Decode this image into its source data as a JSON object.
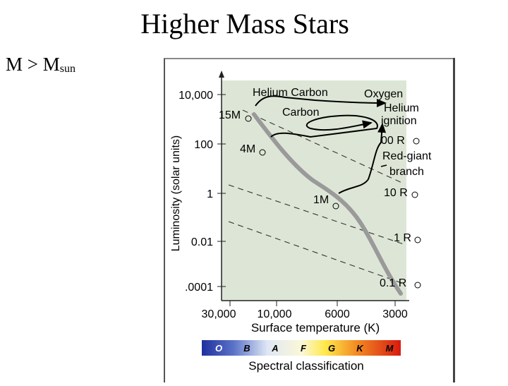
{
  "slide": {
    "title": "Higher Mass Stars",
    "bullet_main": "M > M",
    "bullet_sub": "sun"
  },
  "diagram": {
    "y_axis_label": "Luminosity (solar units)",
    "x_axis_label": "Surface temperature (K)",
    "y_ticks": [
      "10,000",
      "100",
      "1",
      "0.01",
      ".0001"
    ],
    "x_ticks": [
      "30,000",
      "10,000",
      "6000",
      "3000"
    ],
    "mass_labels": [
      "15M",
      "4M",
      "1M"
    ],
    "radius_labels": [
      "00 R",
      "10 R",
      "1 R",
      "0.1 R"
    ],
    "track_labels": {
      "helium_carbon": "Helium Carbon",
      "oxygen": "Oxygen",
      "carbon": "Carbon",
      "helium_ignition_1": "Helium",
      "helium_ignition_2": "ignition",
      "red_giant_1": "Red-giant",
      "red_giant_2": "branch"
    },
    "spectral_title": "Spectral classification",
    "spectral_classes": [
      "O",
      "B",
      "A",
      "F",
      "G",
      "K",
      "M"
    ],
    "colors": {
      "plot_bg": "#dde6d6",
      "main_sequence": "#9a9a9a",
      "track": "#000000"
    }
  }
}
